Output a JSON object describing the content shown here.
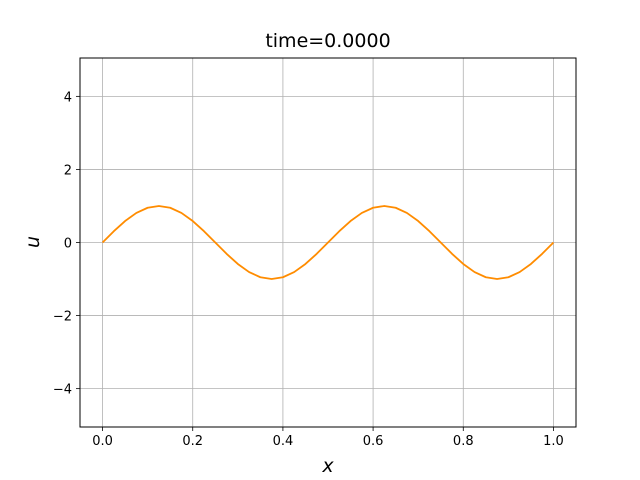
{
  "chart_data": {
    "type": "line",
    "title": "time=0.0000",
    "xlabel": "x",
    "ylabel": "u",
    "xlim": [
      -0.05,
      1.05
    ],
    "ylim": [
      -5.05,
      5.05
    ],
    "xticks": [
      0.0,
      0.2,
      0.4,
      0.6,
      0.8,
      1.0
    ],
    "xtick_labels": [
      "0.0",
      "0.2",
      "0.4",
      "0.6",
      "0.8",
      "1.0"
    ],
    "yticks": [
      -4,
      -2,
      0,
      2,
      4
    ],
    "ytick_labels": [
      "−4",
      "−2",
      "0",
      "2",
      "4"
    ],
    "grid": true,
    "line_color": "#ff8c00",
    "series": [
      {
        "x": [
          0,
          0.025,
          0.05,
          0.075,
          0.1,
          0.125,
          0.15,
          0.175,
          0.2,
          0.225,
          0.25,
          0.275,
          0.3,
          0.325,
          0.35,
          0.375,
          0.4,
          0.425,
          0.45,
          0.475,
          0.5,
          0.525,
          0.55,
          0.575,
          0.6,
          0.625,
          0.65,
          0.675,
          0.7,
          0.725,
          0.75,
          0.775,
          0.8,
          0.825,
          0.85,
          0.875,
          0.9,
          0.925,
          0.95,
          0.975,
          1.0
        ],
        "y": [
          0,
          0.309,
          0.5878,
          0.809,
          0.9511,
          1,
          0.9511,
          0.809,
          0.5878,
          0.309,
          0,
          -0.309,
          -0.5878,
          -0.809,
          -0.9511,
          -1,
          -0.9511,
          -0.809,
          -0.5878,
          -0.309,
          0,
          0.309,
          0.5878,
          0.809,
          0.9511,
          1,
          0.9511,
          0.809,
          0.5878,
          0.309,
          0,
          -0.309,
          -0.5878,
          -0.809,
          -0.9511,
          -1,
          -0.9511,
          -0.809,
          -0.5878,
          -0.309,
          0
        ]
      }
    ]
  }
}
